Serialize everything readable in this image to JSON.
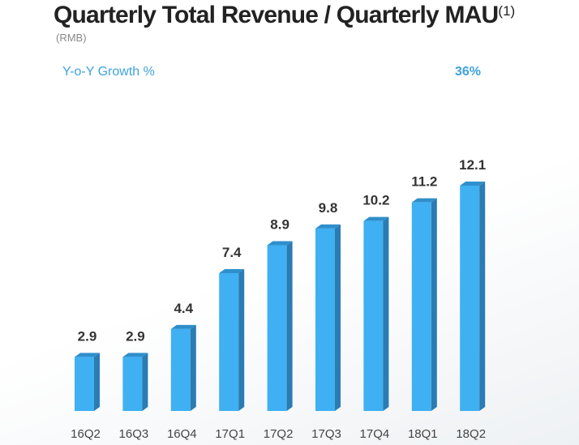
{
  "header": {
    "title": "Quarterly Total Revenue / Quarterly MAU",
    "footnote_marker": "(1)",
    "unit": "(RMB)"
  },
  "growth": {
    "label": "Y-o-Y Growth %",
    "value": "36%"
  },
  "colors": {
    "bar_front": "#3fb0f2",
    "bar_side": "#2a7cb3",
    "bar_top": "#2f8fcc",
    "accent": "#3da3dd"
  },
  "chart_data": {
    "type": "bar",
    "title": "Quarterly Total Revenue / Quarterly MAU",
    "subtitle": "(RMB)",
    "xlabel": "",
    "ylabel": "",
    "categories": [
      "16Q2",
      "16Q3",
      "16Q4",
      "17Q1",
      "17Q2",
      "17Q3",
      "17Q4",
      "18Q1",
      "18Q2"
    ],
    "values": [
      2.9,
      2.9,
      4.4,
      7.4,
      8.9,
      9.8,
      10.2,
      11.2,
      12.1
    ],
    "data_labels": [
      "2.9",
      "2.9",
      "4.4",
      "7.4",
      "8.9",
      "9.8",
      "10.2",
      "11.2",
      "12.1"
    ],
    "ylim": [
      0,
      12.1
    ],
    "grid": false,
    "legend": "none",
    "annotations": [
      {
        "label": "Y-o-Y Growth %",
        "value": "36%"
      }
    ]
  }
}
